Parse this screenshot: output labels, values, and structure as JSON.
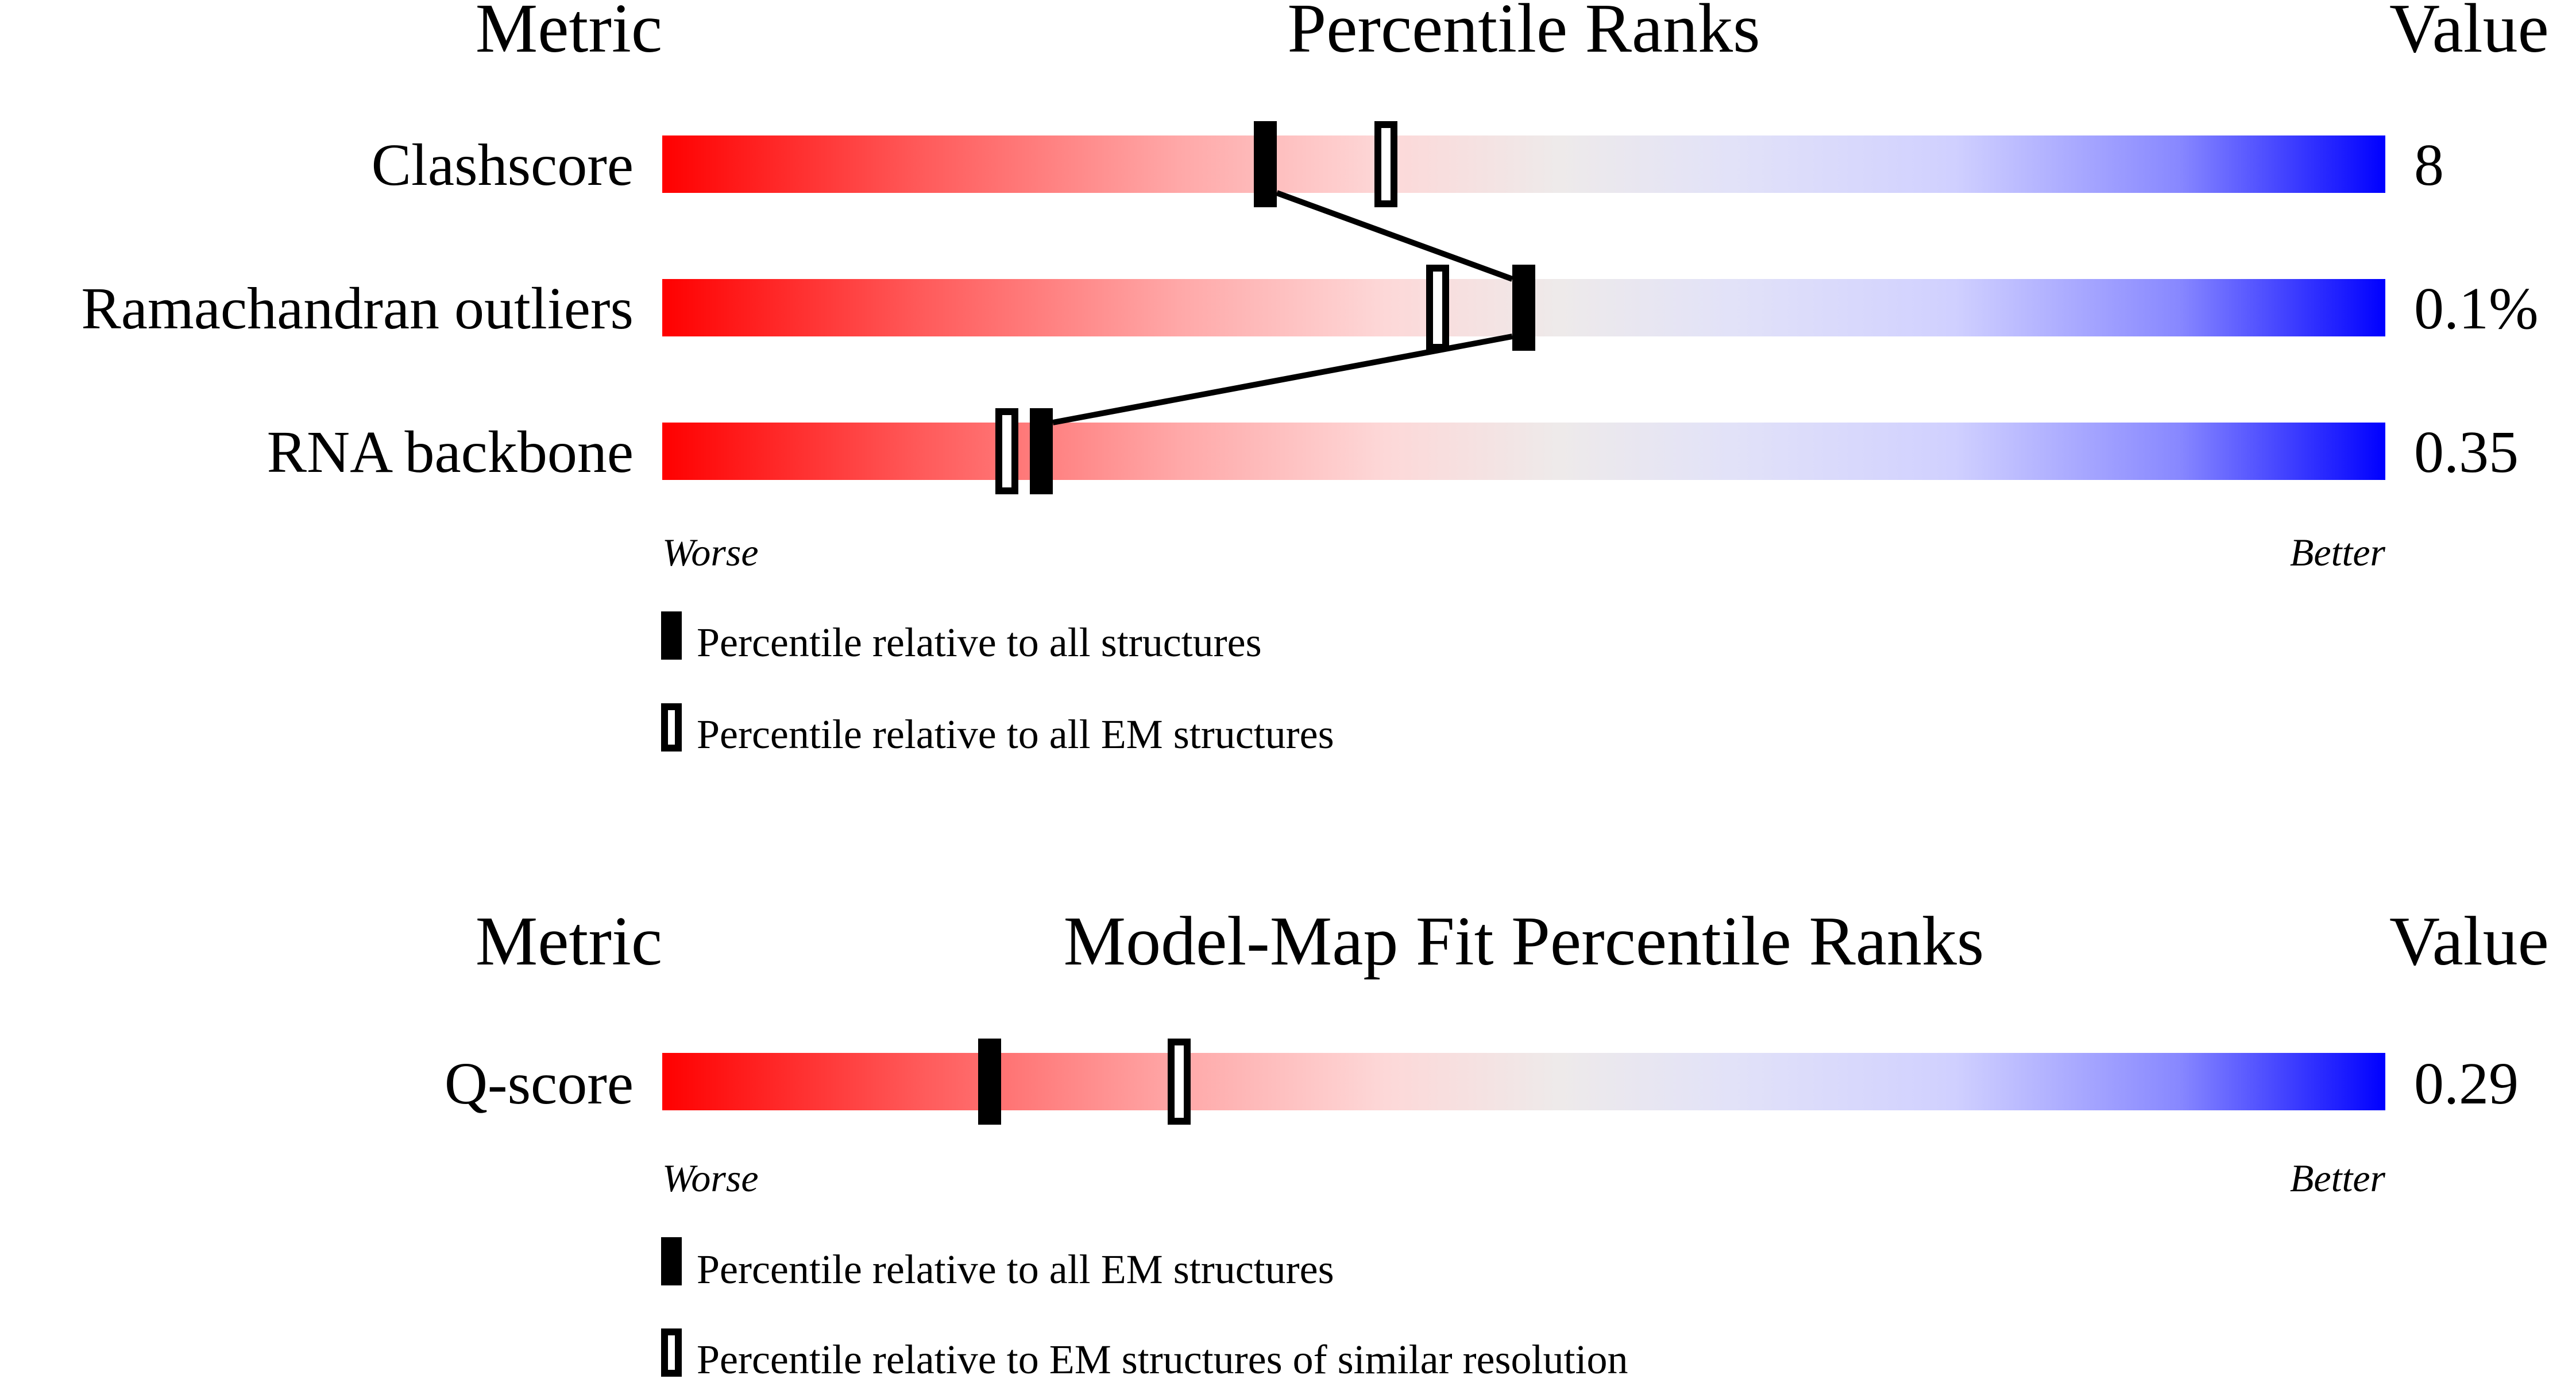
{
  "chart_data": [
    {
      "type": "percentile-slider",
      "header": {
        "metric": "Metric",
        "title": "Percentile Ranks",
        "value": "Value"
      },
      "xlim": [
        0,
        100
      ],
      "scale_labels": {
        "worse": "Worse",
        "better": "Better"
      },
      "colors": {
        "worse": "#ff0000",
        "middle": "#eeeeee",
        "better": "#0000ff",
        "marker": "#000000"
      },
      "rows": [
        {
          "metric": "Clashscore",
          "value": "8",
          "filled_percentile": 35,
          "open_percentile": 42
        },
        {
          "metric": "Ramachandran outliers",
          "value": "0.1%",
          "filled_percentile": 50,
          "open_percentile": 45
        },
        {
          "metric": "RNA backbone",
          "value": "0.35",
          "filled_percentile": 22,
          "open_percentile": 20
        }
      ],
      "connect_filled_markers": true,
      "legend": {
        "filled": "Percentile relative to all structures",
        "open": "Percentile relative to all EM structures"
      }
    },
    {
      "type": "percentile-slider",
      "header": {
        "metric": "Metric",
        "title": "Model-Map Fit Percentile Ranks",
        "value": "Value"
      },
      "xlim": [
        0,
        100
      ],
      "scale_labels": {
        "worse": "Worse",
        "better": "Better"
      },
      "colors": {
        "worse": "#ff0000",
        "middle": "#eeeeee",
        "better": "#0000ff",
        "marker": "#000000"
      },
      "rows": [
        {
          "metric": "Q-score",
          "value": "0.29",
          "filled_percentile": 19,
          "open_percentile": 30
        }
      ],
      "connect_filled_markers": false,
      "legend": {
        "filled": "Percentile relative to all EM structures",
        "open": "Percentile relative to EM structures of similar resolution"
      }
    }
  ]
}
